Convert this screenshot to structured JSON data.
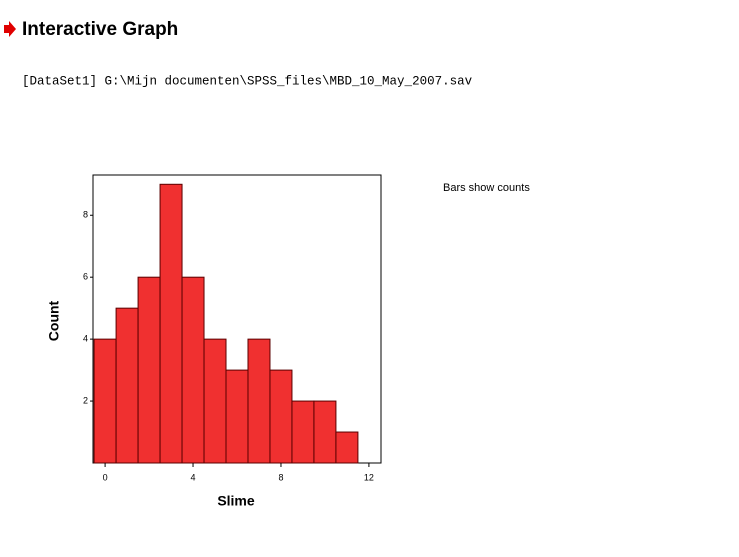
{
  "header": {
    "title": "Interactive Graph",
    "dataset": "[DataSet1] G:\\Mijn documenten\\SPSS_files\\MBD_10_May_2007.sav"
  },
  "chart_data": {
    "type": "histogram",
    "xlabel": "Slime",
    "ylabel": "Count",
    "annotation": "Bars show counts",
    "bins": [
      -0.5,
      0.5,
      1.5,
      2.5,
      3.5,
      4.5,
      5.5,
      6.5,
      7.5,
      8.5,
      9.5,
      10.5,
      11.5
    ],
    "counts": [
      4,
      5,
      6,
      9,
      6,
      4,
      3,
      4,
      3,
      2,
      2,
      1
    ],
    "color": "#f03030",
    "xlim": [
      -0.55,
      12.55
    ],
    "ylim": [
      0,
      9.3
    ],
    "xticks": [
      0,
      4,
      8,
      12
    ],
    "yticks": [
      2,
      4,
      6,
      8
    ],
    "grid": false
  }
}
